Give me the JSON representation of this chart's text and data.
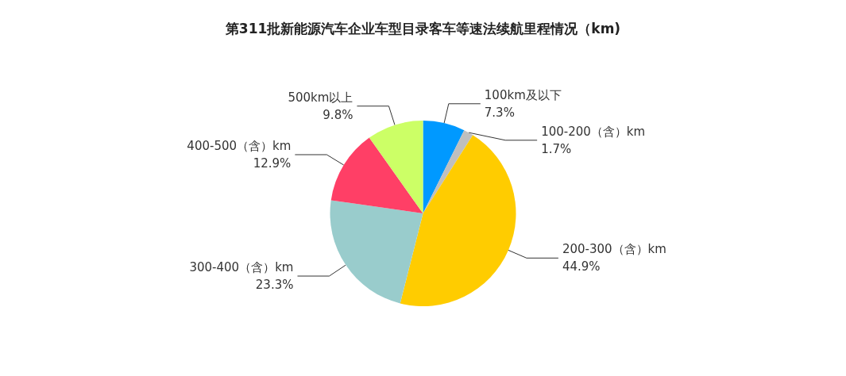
{
  "chart_data": {
    "type": "pie",
    "title": "第311批新能源汽车企业车型目录客车等速法续航里程情况（km)",
    "categories": [
      "100km及以下",
      "100-200（含）km",
      "200-300（含）km",
      "300-400（含）km",
      "400-500（含）km",
      "500km以上"
    ],
    "values": [
      7.3,
      1.7,
      44.9,
      23.3,
      12.9,
      9.8
    ],
    "value_labels": [
      "7.3%",
      "1.7%",
      "44.9%",
      "23.3%",
      "12.9%",
      "9.8%"
    ],
    "colors": [
      "#0099ff",
      "#bfbfbf",
      "#ffcc00",
      "#99cccc",
      "#ff3f66",
      "#ccff66"
    ],
    "legend": false
  }
}
